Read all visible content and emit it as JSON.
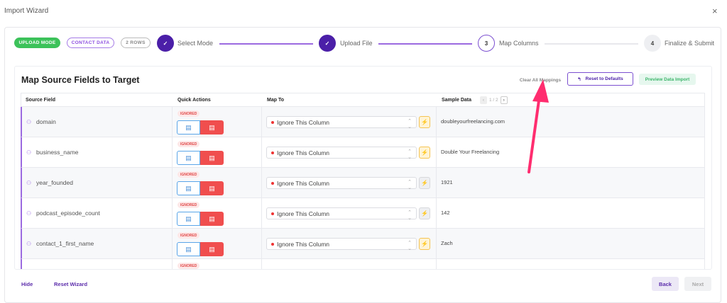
{
  "window": {
    "title": "Import Wizard",
    "close_icon": "×"
  },
  "chips": {
    "mode": "UPLOAD MODE",
    "data": "CONTACT DATA",
    "rows": "2 ROWS"
  },
  "steps": [
    {
      "num": "✓",
      "label": "Select Mode",
      "state": "done"
    },
    {
      "num": "✓",
      "label": "Upload File",
      "state": "done"
    },
    {
      "num": "3",
      "label": "Map Columns",
      "state": "active"
    },
    {
      "num": "4",
      "label": "Finalize & Submit",
      "state": "pending"
    }
  ],
  "panel": {
    "title": "Map Source Fields to Target",
    "clear": "Clear All Mappings",
    "reset": "Reset to Defaults",
    "reset_icon": "↰",
    "preview": "Preview Data Import"
  },
  "table": {
    "headers": {
      "source": "Source Field",
      "quick": "Quick Actions",
      "map": "Map To",
      "sample": "Sample Data"
    },
    "pager": {
      "prev": "‹",
      "text": "1 / 2",
      "next": "›"
    },
    "rows": [
      {
        "field": "domain",
        "status": "IGNORED",
        "map": "Ignore This Column",
        "sample": "doubleyourfreelancing.com",
        "bolt": "on"
      },
      {
        "field": "business_name",
        "status": "IGNORED",
        "map": "Ignore This Column",
        "sample": "Double Your Freelancing",
        "bolt": "on"
      },
      {
        "field": "year_founded",
        "status": "IGNORED",
        "map": "Ignore This Column",
        "sample": "1921",
        "bolt": "off"
      },
      {
        "field": "podcast_episode_count",
        "status": "IGNORED",
        "map": "Ignore This Column",
        "sample": "142",
        "bolt": "off"
      },
      {
        "field": "contact_1_first_name",
        "status": "IGNORED",
        "map": "Ignore This Column",
        "sample": "Zach",
        "bolt": "on"
      },
      {
        "field": "",
        "status": "IGNORED",
        "map": "",
        "sample": "",
        "bolt": "none"
      }
    ]
  },
  "footer": {
    "hide": "Hide",
    "reset": "Reset Wizard",
    "back": "Back",
    "next": "Next"
  },
  "colors": {
    "accent": "#5b2cab",
    "green": "#3cc25a",
    "red": "#f04e4e",
    "arrow": "#ff2d6f"
  }
}
